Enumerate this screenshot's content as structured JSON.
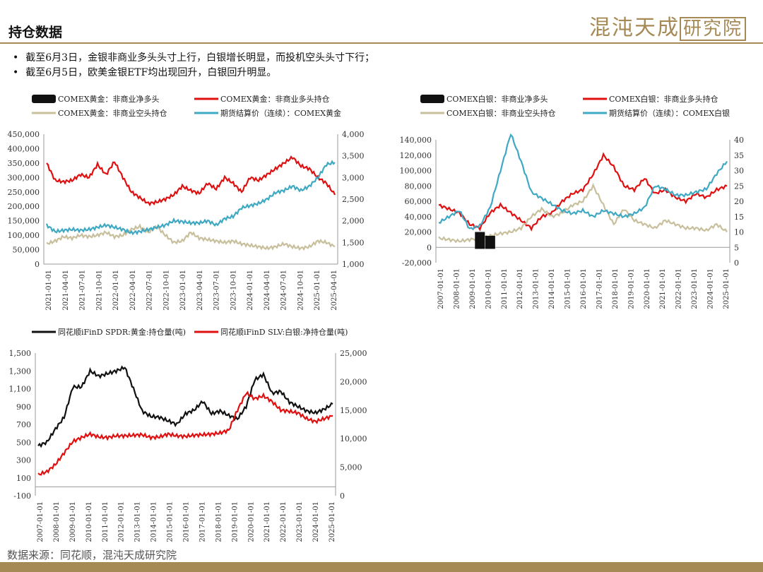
{
  "header": {
    "title": "持仓数据",
    "logo_text": "混沌天成",
    "logo_boxed": "研究院"
  },
  "bullets": [
    "截至6月3日，金银非商业多头头寸上行，白银增长明显，而投机空头头寸下行；",
    "截至6月5日，欧美金银ETF均出现回升，白银回升明显。"
  ],
  "source": "数据来源：同花顺，混沌天成研究院",
  "chart_data": [
    {
      "type": "line",
      "legend": [
        "COMEX黄金：非商业净多头",
        "COMEX黄金：非商业多头持仓",
        "COMEX黄金：非商业空头持仓",
        "期货结算价（连续）：COMEX黄金"
      ],
      "x_ticks": [
        "2021-01-01",
        "2021-04-01",
        "2021-07-01",
        "2021-10-01",
        "2022-01-01",
        "2022-04-01",
        "2022-07-01",
        "2022-10-01",
        "2023-01-01",
        "2023-04-01",
        "2023-07-01",
        "2023-10-01",
        "2024-01-01",
        "2024-04-01",
        "2024-07-01",
        "2024-10-01",
        "2025-01-01",
        "2025-04-01"
      ],
      "y_left_ticks": [
        "0",
        "50,000",
        "100,000",
        "150,000",
        "200,000",
        "250,000",
        "300,000",
        "350,000",
        "400,000",
        "450,000"
      ],
      "y_right_ticks": [
        "1,000",
        "1,500",
        "2,000",
        "2,500",
        "3,000",
        "3,500",
        "4,000"
      ],
      "ylim": [
        0,
        450000
      ],
      "y2lim": [
        1000,
        4000
      ],
      "series": [
        {
          "name": "COMEX黄金：非商业多头持仓",
          "color": "#e01010",
          "axis": "left",
          "values": [
            350000,
            290000,
            285000,
            290000,
            310000,
            300000,
            345000,
            310000,
            355000,
            300000,
            250000,
            230000,
            210000,
            215000,
            225000,
            240000,
            270000,
            255000,
            245000,
            280000,
            260000,
            300000,
            280000,
            250000,
            300000,
            290000,
            310000,
            330000,
            350000,
            370000,
            340000,
            330000,
            300000,
            280000,
            240000
          ]
        },
        {
          "name": "COMEX黄金：非商业空头持仓",
          "color": "#c8bf9c",
          "axis": "left",
          "values": [
            70000,
            80000,
            95000,
            90000,
            100000,
            95000,
            100000,
            110000,
            95000,
            100000,
            120000,
            130000,
            110000,
            130000,
            100000,
            75000,
            80000,
            110000,
            90000,
            85000,
            80000,
            75000,
            80000,
            70000,
            65000,
            60000,
            55000,
            60000,
            70000,
            60000,
            55000,
            60000,
            80000,
            75000,
            60000
          ]
        },
        {
          "name": "期货结算价（连续）：COMEX黄金",
          "color": "#3fa9c3",
          "axis": "right",
          "values": [
            1900,
            1750,
            1780,
            1800,
            1780,
            1800,
            1850,
            1900,
            1850,
            1800,
            1720,
            1750,
            1800,
            1850,
            1900,
            2000,
            1980,
            1950,
            1950,
            2000,
            1900,
            2050,
            2100,
            2300,
            2350,
            2400,
            2500,
            2650,
            2700,
            2800,
            2700,
            2800,
            3000,
            3300,
            3350
          ]
        }
      ]
    },
    {
      "type": "line",
      "legend": [
        "COMEX白银：非商业净多头",
        "COMEX白银：非商业多头持仓",
        "COMEX白银：非商业空头持仓",
        "期货结算价（连续）：COMEX白银"
      ],
      "x_ticks": [
        "2007-01-01",
        "2008-01-01",
        "2009-01-01",
        "2010-01-01",
        "2011-01-01",
        "2012-01-01",
        "2013-01-01",
        "2014-01-01",
        "2015-01-01",
        "2016-01-01",
        "2017-01-01",
        "2018-01-01",
        "2019-01-01",
        "2020-01-01",
        "2021-01-01",
        "2022-01-01",
        "2023-01-01",
        "2024-01-01",
        "2025-01-01"
      ],
      "y_left_ticks": [
        "-20,000",
        "0",
        "20,000",
        "40,000",
        "60,000",
        "80,000",
        "100,000",
        "120,000",
        "140,000"
      ],
      "y_right_ticks": [
        "0",
        "5",
        "10",
        "15",
        "20",
        "25",
        "30",
        "35",
        "40"
      ],
      "ylim": [
        -20000,
        140000
      ],
      "y2lim": [
        0,
        40
      ],
      "series": [
        {
          "name": "COMEX白银：非商业多头持仓",
          "color": "#e01010",
          "axis": "left",
          "values": [
            55000,
            50000,
            45000,
            30000,
            25000,
            45000,
            55000,
            45000,
            35000,
            25000,
            40000,
            45000,
            60000,
            70000,
            75000,
            95000,
            120000,
            105000,
            80000,
            75000,
            90000,
            70000,
            75000,
            65000,
            60000,
            70000,
            65000,
            75000,
            80000
          ]
        },
        {
          "name": "COMEX白银：非商业空头持仓",
          "color": "#c8bf9c",
          "axis": "left",
          "values": [
            12000,
            10000,
            8000,
            10000,
            12000,
            15000,
            18000,
            20000,
            25000,
            40000,
            50000,
            40000,
            45000,
            55000,
            60000,
            80000,
            55000,
            30000,
            50000,
            35000,
            30000,
            25000,
            35000,
            30000,
            25000,
            25000,
            22000,
            30000,
            20000
          ]
        },
        {
          "name": "COMEX白银：非商业净多头",
          "color": "#111111",
          "axis": "left",
          "values": [
            null,
            null,
            null,
            null,
            20000,
            15000,
            null,
            null,
            null,
            null,
            null,
            null,
            null,
            null,
            null,
            null,
            null,
            null,
            null,
            null,
            null,
            null,
            null,
            null,
            null,
            null,
            null,
            null,
            null
          ]
        },
        {
          "name": "期货结算价（连续）：COMEX白银",
          "color": "#3fa9c3",
          "axis": "right",
          "values": [
            13,
            15,
            17,
            11,
            12,
            18,
            30,
            42,
            33,
            23,
            21,
            19,
            17,
            16,
            17,
            15,
            17,
            16,
            15,
            16,
            18,
            25,
            24,
            22,
            22,
            23,
            24,
            29,
            33
          ]
        }
      ]
    },
    {
      "type": "line",
      "legend": [
        "同花顺iFinD SPDR:黄金:持仓量(吨)",
        "同花顺iFinD SLV:白银:净持仓量(吨)"
      ],
      "x_ticks": [
        "2007-01-01",
        "2008-01-01",
        "2009-01-01",
        "2010-01-01",
        "2011-01-01",
        "2012-01-01",
        "2013-01-01",
        "2014-01-01",
        "2015-01-01",
        "2016-01-01",
        "2017-01-01",
        "2018-01-01",
        "2019-01-01",
        "2020-01-01",
        "2021-01-01",
        "2022-01-01",
        "2023-01-01",
        "2024-01-01",
        "2025-01-01"
      ],
      "y_left_ticks": [
        "-100",
        "100",
        "300",
        "500",
        "700",
        "900",
        "1,100",
        "1,300",
        "1,500"
      ],
      "y_right_ticks": [
        "0",
        "5,000",
        "10,000",
        "15,000",
        "20,000",
        "25,000"
      ],
      "ylim": [
        -100,
        1500
      ],
      "y2lim": [
        0,
        25000
      ],
      "series": [
        {
          "name": "同花顺iFinD SPDR:黄金:持仓量(吨)",
          "color": "#111111",
          "axis": "left",
          "values": [
            460,
            500,
            650,
            780,
            1120,
            1120,
            1300,
            1240,
            1270,
            1300,
            1340,
            1100,
            850,
            790,
            780,
            740,
            700,
            820,
            860,
            960,
            820,
            850,
            800,
            760,
            900,
            1200,
            1260,
            1050,
            1070,
            950,
            900,
            850,
            830,
            870,
            930
          ]
        },
        {
          "name": "同花顺iFinD SLV:白银:净持仓量(吨)",
          "color": "#e01010",
          "axis": "right",
          "values": [
            3700,
            4200,
            5500,
            7500,
            9500,
            10200,
            10800,
            10300,
            10200,
            10500,
            10500,
            10600,
            10700,
            10200,
            10300,
            10800,
            10500,
            10400,
            10600,
            10700,
            10800,
            11000,
            11500,
            15000,
            18000,
            17000,
            17500,
            16500,
            15000,
            14800,
            14500,
            13500,
            13000,
            13500,
            14000
          ]
        }
      ]
    }
  ]
}
